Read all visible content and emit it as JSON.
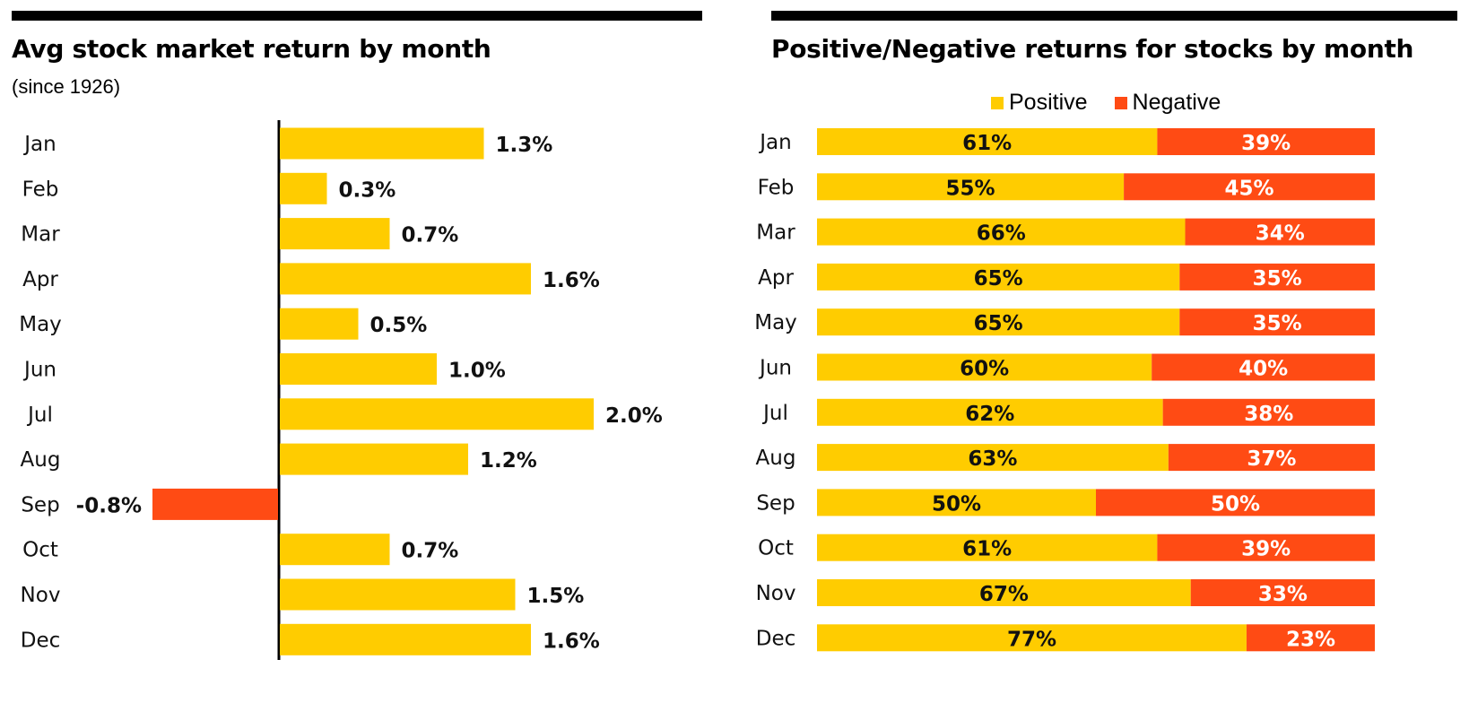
{
  "colors": {
    "positive": "#FFCC00",
    "negative": "#FF4B14",
    "rule": "#000000"
  },
  "left": {
    "title": "Avg stock market return by month",
    "subtitle": "(since 1926)"
  },
  "right": {
    "title": "Positive/Negative returns for stocks by month",
    "legend": {
      "positive": "Positive",
      "negative": "Negative"
    }
  },
  "chart_data": [
    {
      "type": "bar",
      "orientation": "horizontal",
      "title": "Avg stock market return by month",
      "subtitle": "(since 1926)",
      "categories": [
        "Jan",
        "Feb",
        "Mar",
        "Apr",
        "May",
        "Jun",
        "Jul",
        "Aug",
        "Sep",
        "Oct",
        "Nov",
        "Dec"
      ],
      "values": [
        1.3,
        0.3,
        0.7,
        1.6,
        0.5,
        1.0,
        2.0,
        1.2,
        -0.8,
        0.7,
        1.5,
        1.6
      ],
      "value_labels": [
        "1.3%",
        "0.3%",
        "0.7%",
        "1.6%",
        "0.5%",
        "1.0%",
        "2.0%",
        "1.2%",
        "-0.8%",
        "0.7%",
        "1.5%",
        "1.6%"
      ],
      "unit": "%",
      "xlim": [
        -1.3,
        2.0
      ],
      "grid": false
    },
    {
      "type": "bar",
      "orientation": "horizontal",
      "stacked": true,
      "title": "Positive/Negative returns for stocks by month",
      "categories": [
        "Jan",
        "Feb",
        "Mar",
        "Apr",
        "May",
        "Jun",
        "Jul",
        "Aug",
        "Sep",
        "Oct",
        "Nov",
        "Dec"
      ],
      "series": [
        {
          "name": "Positive",
          "values": [
            61,
            55,
            66,
            65,
            65,
            60,
            62,
            63,
            50,
            61,
            67,
            77
          ]
        },
        {
          "name": "Negative",
          "values": [
            39,
            45,
            34,
            35,
            35,
            40,
            38,
            37,
            50,
            39,
            33,
            23
          ]
        }
      ],
      "unit": "%",
      "xlim": [
        0,
        100
      ],
      "legend_position": "top-center",
      "grid": false
    }
  ]
}
